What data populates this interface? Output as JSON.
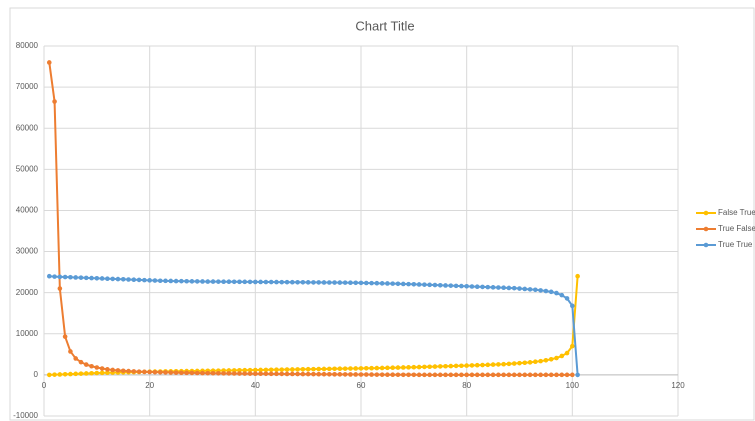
{
  "chart_data": {
    "type": "scatter-line",
    "title": "Chart Title",
    "x": [
      1,
      2,
      3,
      4,
      5,
      6,
      7,
      8,
      9,
      10,
      11,
      12,
      13,
      14,
      15,
      16,
      17,
      18,
      19,
      20,
      21,
      22,
      23,
      24,
      25,
      26,
      27,
      28,
      29,
      30,
      31,
      32,
      33,
      34,
      35,
      36,
      37,
      38,
      39,
      40,
      41,
      42,
      43,
      44,
      45,
      46,
      47,
      48,
      49,
      50,
      51,
      52,
      53,
      54,
      55,
      56,
      57,
      58,
      59,
      60,
      61,
      62,
      63,
      64,
      65,
      66,
      67,
      68,
      69,
      70,
      71,
      72,
      73,
      74,
      75,
      76,
      77,
      78,
      79,
      80,
      81,
      82,
      83,
      84,
      85,
      86,
      87,
      88,
      89,
      90,
      91,
      92,
      93,
      94,
      95,
      96,
      97,
      98,
      99,
      100,
      101
    ],
    "series": [
      {
        "name": "False True",
        "color": "#ffc000",
        "values": [
          0,
          50,
          100,
          150,
          200,
          250,
          300,
          350,
          400,
          450,
          500,
          530,
          560,
          590,
          620,
          650,
          680,
          710,
          740,
          770,
          800,
          820,
          840,
          860,
          880,
          900,
          920,
          940,
          960,
          980,
          1000,
          1020,
          1040,
          1060,
          1080,
          1100,
          1120,
          1140,
          1160,
          1180,
          1200,
          1220,
          1240,
          1260,
          1280,
          1300,
          1320,
          1340,
          1360,
          1380,
          1400,
          1420,
          1440,
          1460,
          1480,
          1500,
          1520,
          1540,
          1560,
          1580,
          1600,
          1630,
          1660,
          1690,
          1720,
          1750,
          1780,
          1810,
          1840,
          1870,
          1900,
          1940,
          1980,
          2020,
          2060,
          2100,
          2140,
          2180,
          2220,
          2260,
          2300,
          2350,
          2400,
          2450,
          2500,
          2550,
          2600,
          2680,
          2760,
          2850,
          2950,
          3050,
          3200,
          3350,
          3550,
          3800,
          4100,
          4600,
          5300,
          7000,
          24000
        ]
      },
      {
        "name": "True False",
        "color": "#ed7d31",
        "values": [
          76000,
          66500,
          21000,
          9300,
          5700,
          4000,
          3100,
          2500,
          2100,
          1800,
          1550,
          1350,
          1200,
          1100,
          1000,
          920,
          850,
          790,
          740,
          700,
          660,
          630,
          600,
          570,
          545,
          520,
          500,
          480,
          460,
          440,
          420,
          400,
          385,
          370,
          355,
          340,
          325,
          310,
          300,
          290,
          280,
          270,
          260,
          250,
          240,
          230,
          220,
          210,
          200,
          190,
          180,
          170,
          160,
          150,
          140,
          130,
          120,
          110,
          100,
          90,
          80,
          70,
          60,
          50,
          45,
          40,
          35,
          30,
          25,
          20,
          15,
          15,
          15,
          15,
          15,
          15,
          15,
          15,
          15,
          15,
          10,
          10,
          10,
          10,
          10,
          10,
          10,
          10,
          10,
          10,
          10,
          10,
          10,
          10,
          10,
          10,
          10,
          10,
          10,
          10,
          null
        ]
      },
      {
        "name": "True True",
        "color": "#5b9bd5",
        "values": [
          24000,
          23900,
          23850,
          23800,
          23750,
          23700,
          23650,
          23600,
          23550,
          23500,
          23450,
          23400,
          23350,
          23300,
          23250,
          23200,
          23150,
          23100,
          23050,
          23000,
          22950,
          22900,
          22880,
          22850,
          22820,
          22800,
          22780,
          22760,
          22740,
          22720,
          22700,
          22690,
          22680,
          22670,
          22660,
          22650,
          22640,
          22630,
          22620,
          22610,
          22600,
          22590,
          22580,
          22570,
          22560,
          22550,
          22540,
          22530,
          22520,
          22510,
          22500,
          22490,
          22480,
          22470,
          22460,
          22450,
          22440,
          22420,
          22400,
          22380,
          22350,
          22320,
          22300,
          22270,
          22240,
          22200,
          22160,
          22120,
          22080,
          22040,
          22000,
          21950,
          21900,
          21850,
          21800,
          21750,
          21700,
          21650,
          21600,
          21550,
          21500,
          21450,
          21400,
          21350,
          21300,
          21250,
          21200,
          21150,
          21100,
          21000,
          20900,
          20800,
          20700,
          20550,
          20400,
          20200,
          19900,
          19400,
          18600,
          16800,
          0
        ]
      }
    ],
    "xlim": [
      0,
      120
    ],
    "xticks": [
      0,
      20,
      40,
      60,
      80,
      100,
      120
    ],
    "ylim": [
      -10000,
      80000
    ],
    "yticks": [
      -10000,
      0,
      10000,
      20000,
      30000,
      40000,
      50000,
      60000,
      70000,
      80000
    ],
    "grid": true,
    "legend": "right"
  }
}
